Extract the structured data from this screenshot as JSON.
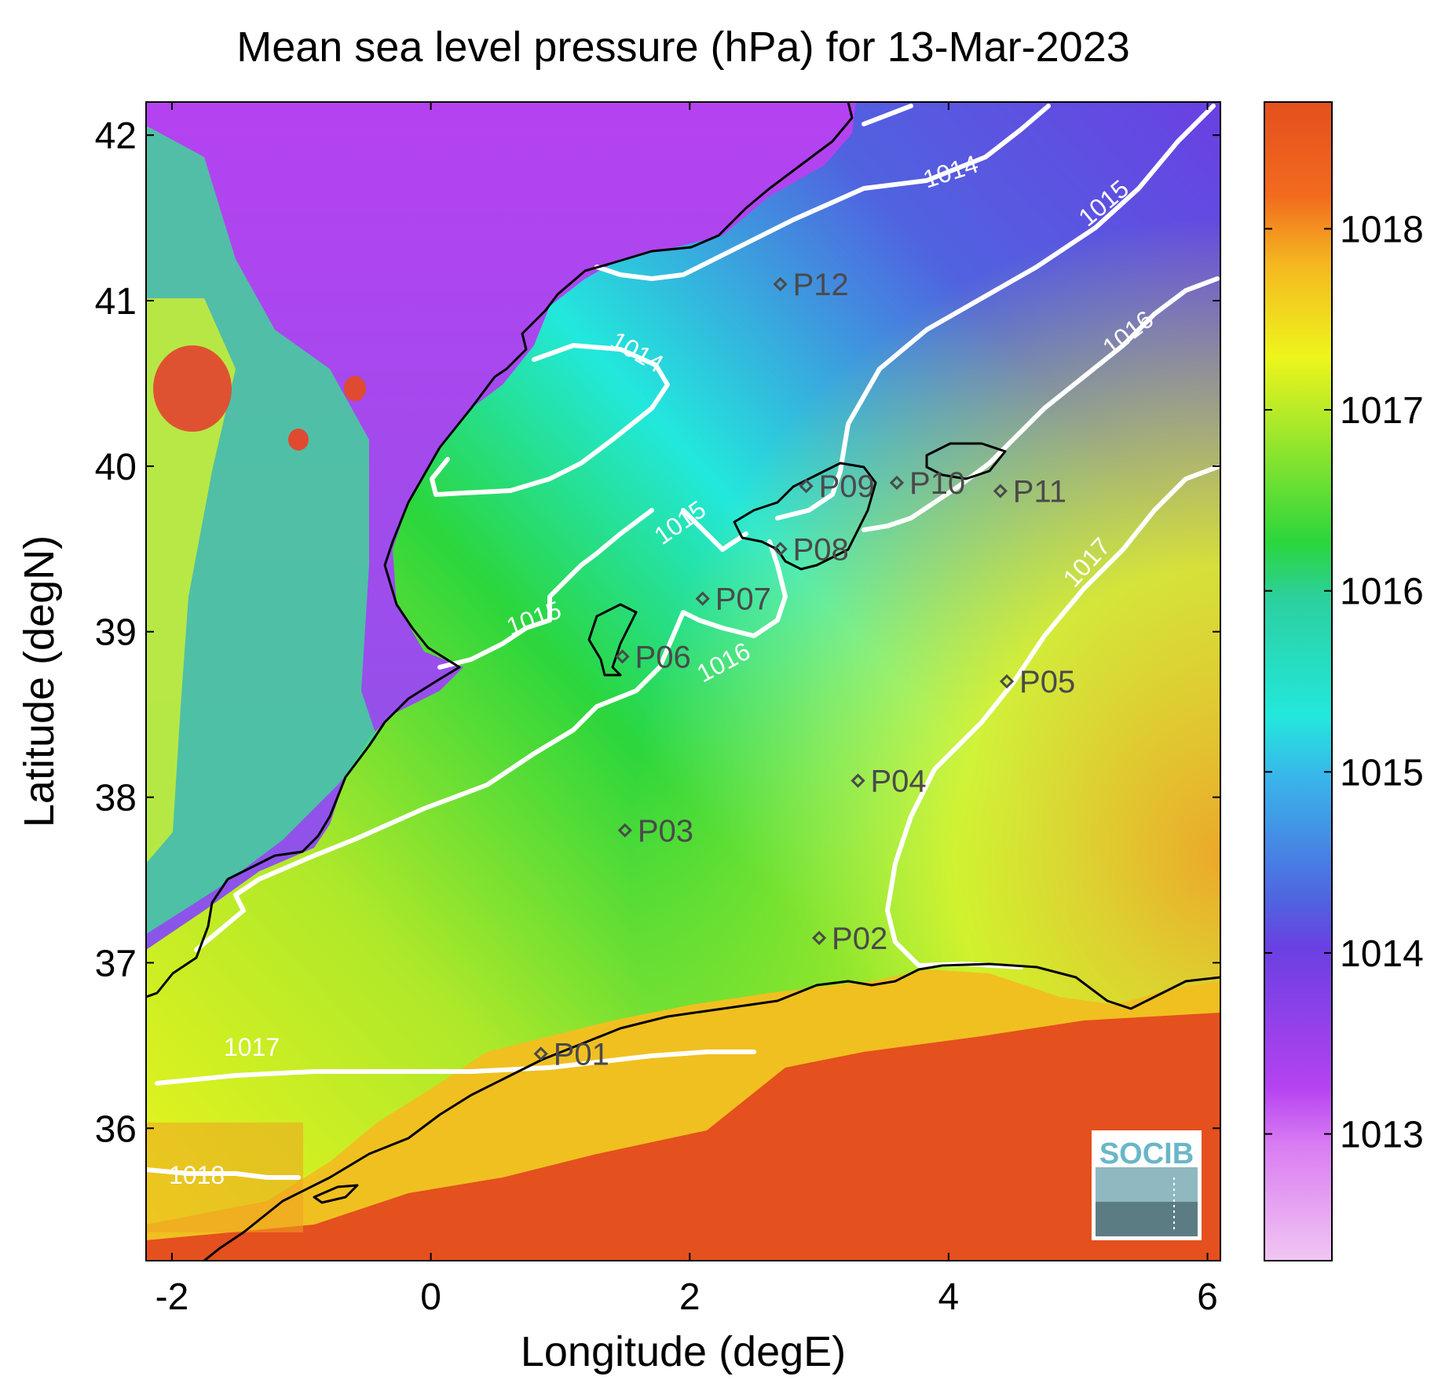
{
  "chart_data": {
    "type": "heatmap",
    "title": "Mean sea level pressure (hPa) for 13-Mar-2023",
    "xlabel": "Longitude (degE)",
    "ylabel": "Latitude (degN)",
    "xlim": [
      -2.2,
      6.1
    ],
    "ylim": [
      35.2,
      42.2
    ],
    "x_ticks": [
      -2,
      0,
      2,
      4,
      6
    ],
    "y_ticks": [
      36,
      37,
      38,
      39,
      40,
      41,
      42
    ],
    "colorbar": {
      "range": [
        1012.3,
        1018.7
      ],
      "ticks": [
        1013,
        1014,
        1015,
        1016,
        1017,
        1018
      ],
      "position": "right"
    },
    "contour_levels": [
      {
        "value": 1014,
        "labels": [
          {
            "lon": 3.9,
            "lat": 41.65,
            "text": "1014"
          },
          {
            "lon": 1.6,
            "lat": 40.7,
            "text": "1014"
          }
        ]
      },
      {
        "value": 1015,
        "labels": [
          {
            "lon": 5.3,
            "lat": 41.45,
            "text": "1015"
          },
          {
            "lon": 1.9,
            "lat": 39.55,
            "text": "1015"
          },
          {
            "lon": 0.9,
            "lat": 39.0,
            "text": "1015"
          }
        ]
      },
      {
        "value": 1016,
        "labels": [
          {
            "lon": 5.4,
            "lat": 40.72,
            "text": "1016"
          },
          {
            "lon": 2.45,
            "lat": 38.85,
            "text": "1016"
          }
        ]
      },
      {
        "value": 1017,
        "labels": [
          {
            "lon": 5.15,
            "lat": 39.35,
            "text": "1017"
          },
          {
            "lon": -1.65,
            "lat": 36.35,
            "text": "1017"
          }
        ]
      },
      {
        "value": 1018,
        "labels": [
          {
            "lon": -1.8,
            "lat": 35.62,
            "text": "1018"
          }
        ]
      }
    ],
    "stations": [
      {
        "name": "P01",
        "lon": 0.85,
        "lat": 36.45
      },
      {
        "name": "P02",
        "lon": 3.0,
        "lat": 37.15
      },
      {
        "name": "P03",
        "lon": 1.5,
        "lat": 37.8
      },
      {
        "name": "P04",
        "lon": 3.3,
        "lat": 38.1
      },
      {
        "name": "P05",
        "lon": 4.45,
        "lat": 38.7
      },
      {
        "name": "P06",
        "lon": 1.48,
        "lat": 38.85
      },
      {
        "name": "P07",
        "lon": 2.1,
        "lat": 39.2
      },
      {
        "name": "P08",
        "lon": 2.7,
        "lat": 39.5
      },
      {
        "name": "P09",
        "lon": 2.9,
        "lat": 39.88
      },
      {
        "name": "P10",
        "lon": 3.6,
        "lat": 39.9
      },
      {
        "name": "P11",
        "lon": 4.4,
        "lat": 39.85
      },
      {
        "name": "P12",
        "lon": 2.7,
        "lat": 41.1
      }
    ],
    "grid": false,
    "logo": "SOCIB"
  },
  "colors": {
    "c1012": "#f1c6f2",
    "c1013": "#b542f0",
    "c1014": "#5063e0",
    "c1015": "#22e8dc",
    "c1016": "#2bd63c",
    "c1017": "#eef51c",
    "c1018": "#e4501e"
  }
}
